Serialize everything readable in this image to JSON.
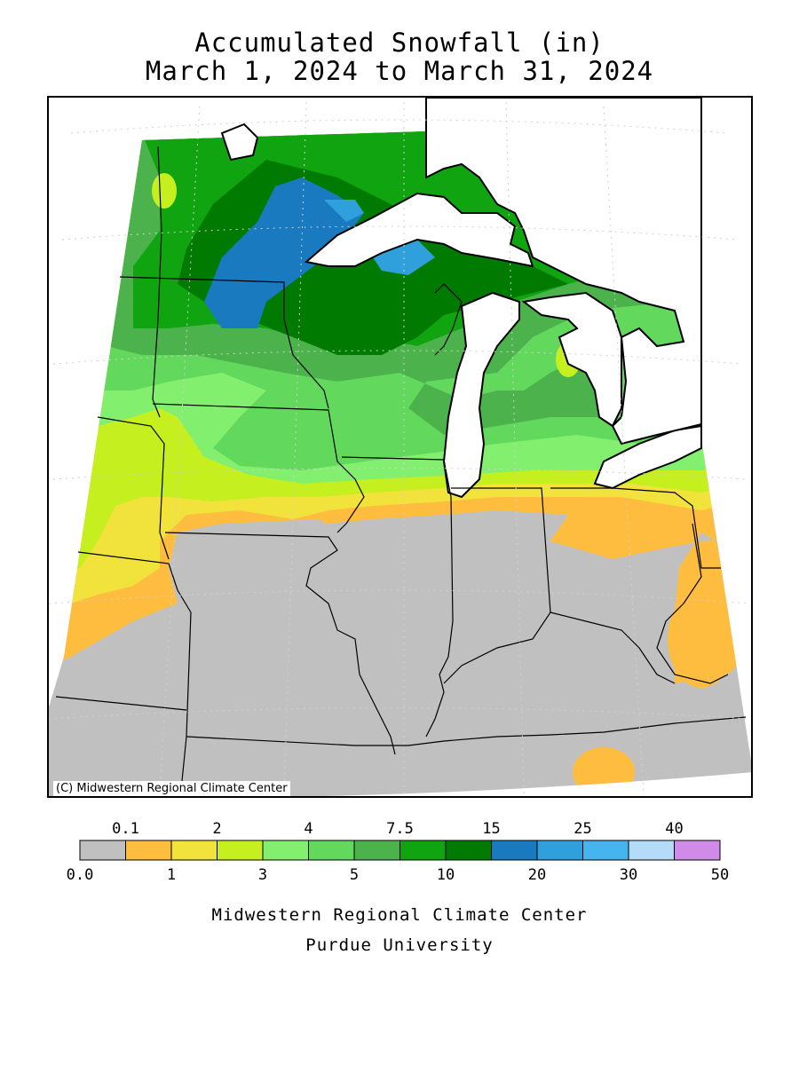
{
  "header": {
    "title_line1": "Accumulated Snowfall (in)",
    "title_line2": "March 1, 2024 to March 31, 2024"
  },
  "map": {
    "copyright": "(C) Midwestern Regional Climate Center",
    "background_no_snow": "#c0c0c0",
    "water_color": "#ffffff"
  },
  "legend": {
    "bins": [
      {
        "color": "#c0c0c0",
        "range": "0.0–0.1"
      },
      {
        "color": "#ffbd40",
        "range": "0.1–1"
      },
      {
        "color": "#f2e23c",
        "range": "1–2"
      },
      {
        "color": "#c6ef1f",
        "range": "2–3"
      },
      {
        "color": "#82ef6e",
        "range": "3–4"
      },
      {
        "color": "#62d85c",
        "range": "4–5"
      },
      {
        "color": "#4cb34c",
        "range": "5–7.5"
      },
      {
        "color": "#10a510",
        "range": "7.5–10"
      },
      {
        "color": "#007a00",
        "range": "10–15"
      },
      {
        "color": "#1a7abf",
        "range": "15–20"
      },
      {
        "color": "#30a0dc",
        "range": "20–25"
      },
      {
        "color": "#46b4ef",
        "range": "25–30"
      },
      {
        "color": "#b4dcf8",
        "range": "30–40"
      },
      {
        "color": "#d08ae8",
        "range": "40–50"
      }
    ],
    "top_labels": [
      "0.1",
      "2",
      "4",
      "7.5",
      "15",
      "25",
      "40"
    ],
    "bottom_labels": [
      "0.0",
      "1",
      "3",
      "5",
      "10",
      "20",
      "30",
      "50"
    ]
  },
  "footer": {
    "line1": "Midwestern Regional Climate Center",
    "line2": "Purdue University"
  }
}
